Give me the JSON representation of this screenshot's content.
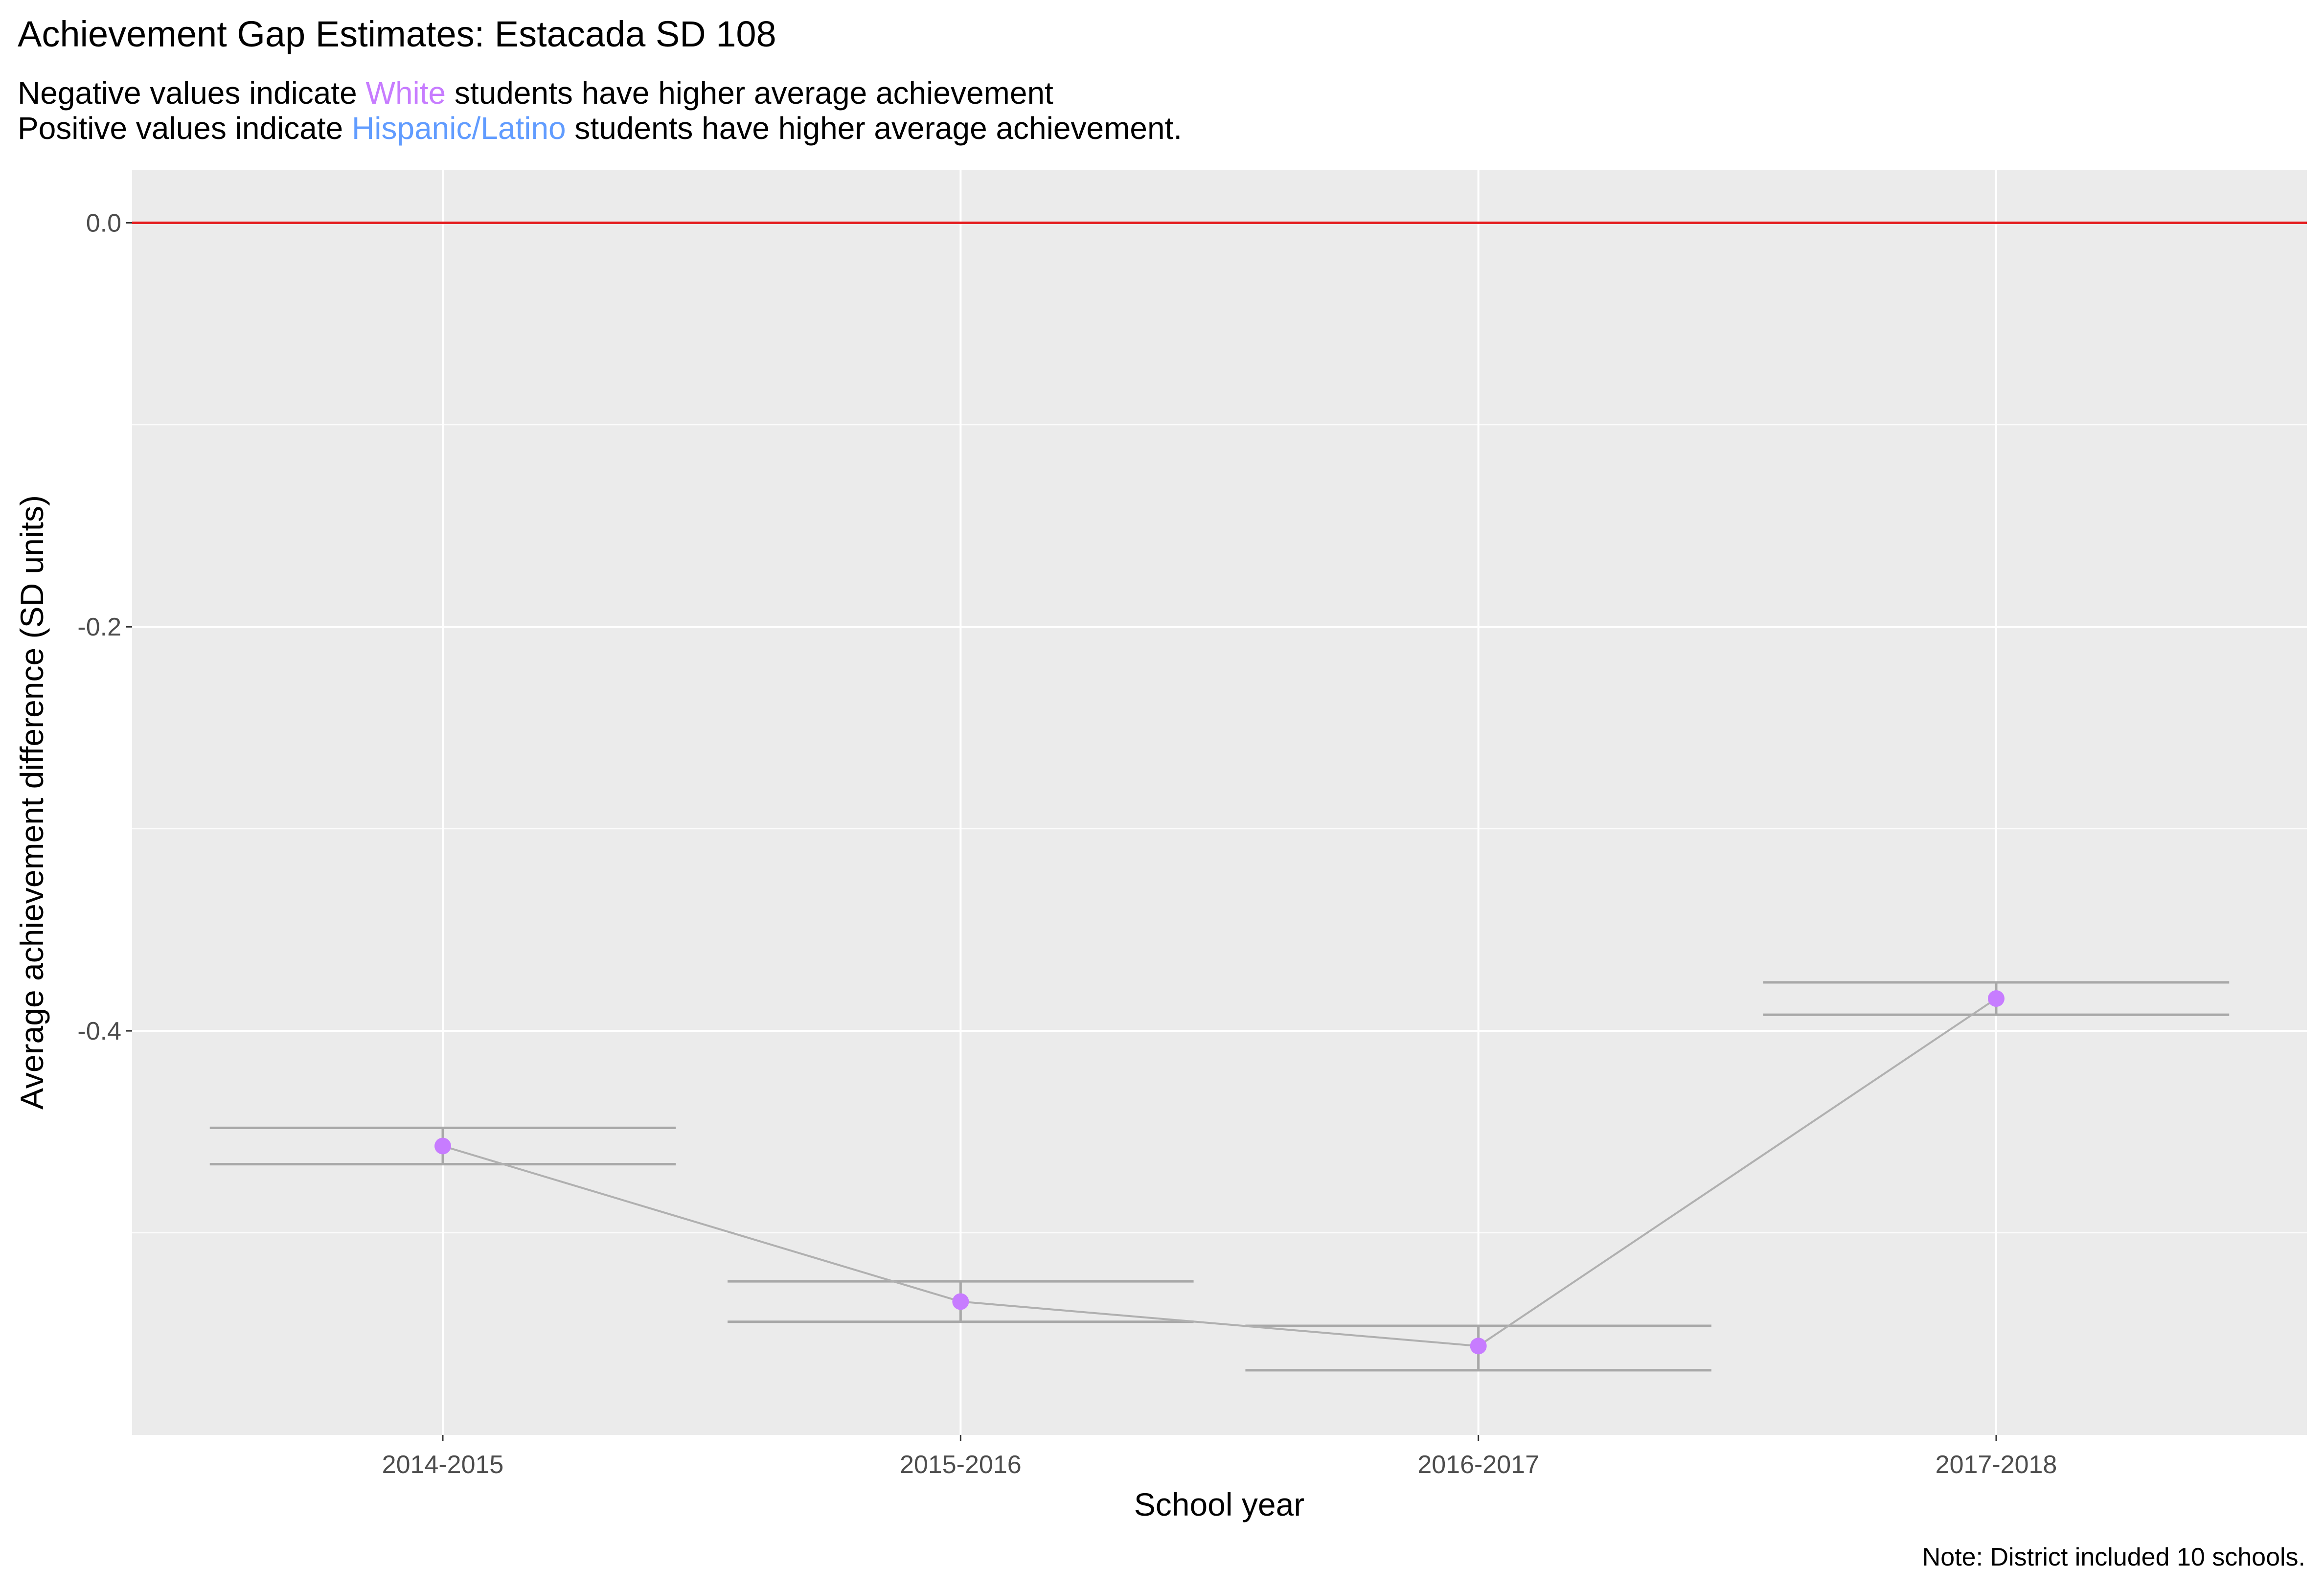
{
  "chart_data": {
    "type": "line",
    "title": "Achievement Gap Estimates: Estacada SD 108",
    "subtitle": {
      "line1": {
        "before": "Negative values indicate ",
        "highlight": "White",
        "after": " students have higher average achievement"
      },
      "line2": {
        "before": "Positive values indicate ",
        "highlight": "Hispanic/Latino",
        "after": " students have higher average achievement."
      }
    },
    "xlabel": "School year",
    "ylabel": "Average achievement difference (SD units)",
    "caption": "Note: District included 10 schools.",
    "categories": [
      "2014-2015",
      "2015-2016",
      "2016-2017",
      "2017-2018"
    ],
    "series": [
      {
        "values": [
          -0.457,
          -0.534,
          -0.556,
          -0.384
        ],
        "ci_upper": [
          -0.448,
          -0.524,
          -0.546,
          -0.376
        ],
        "ci_lower": [
          -0.466,
          -0.544,
          -0.568,
          -0.392
        ]
      }
    ],
    "reference_line": 0,
    "ylim": [
      -0.6,
      0.026
    ],
    "yticks": [
      0.0,
      -0.2,
      -0.4
    ],
    "grid": true,
    "colors": {
      "point": "#c77cff",
      "line": "#b0b0b0",
      "errorbar": "#a8a8a8",
      "reference": "#e41a1c",
      "white_highlight": "#c77cff",
      "hispanic_highlight": "#619cff",
      "panel": "#ebebeb",
      "grid": "#ffffff"
    }
  }
}
